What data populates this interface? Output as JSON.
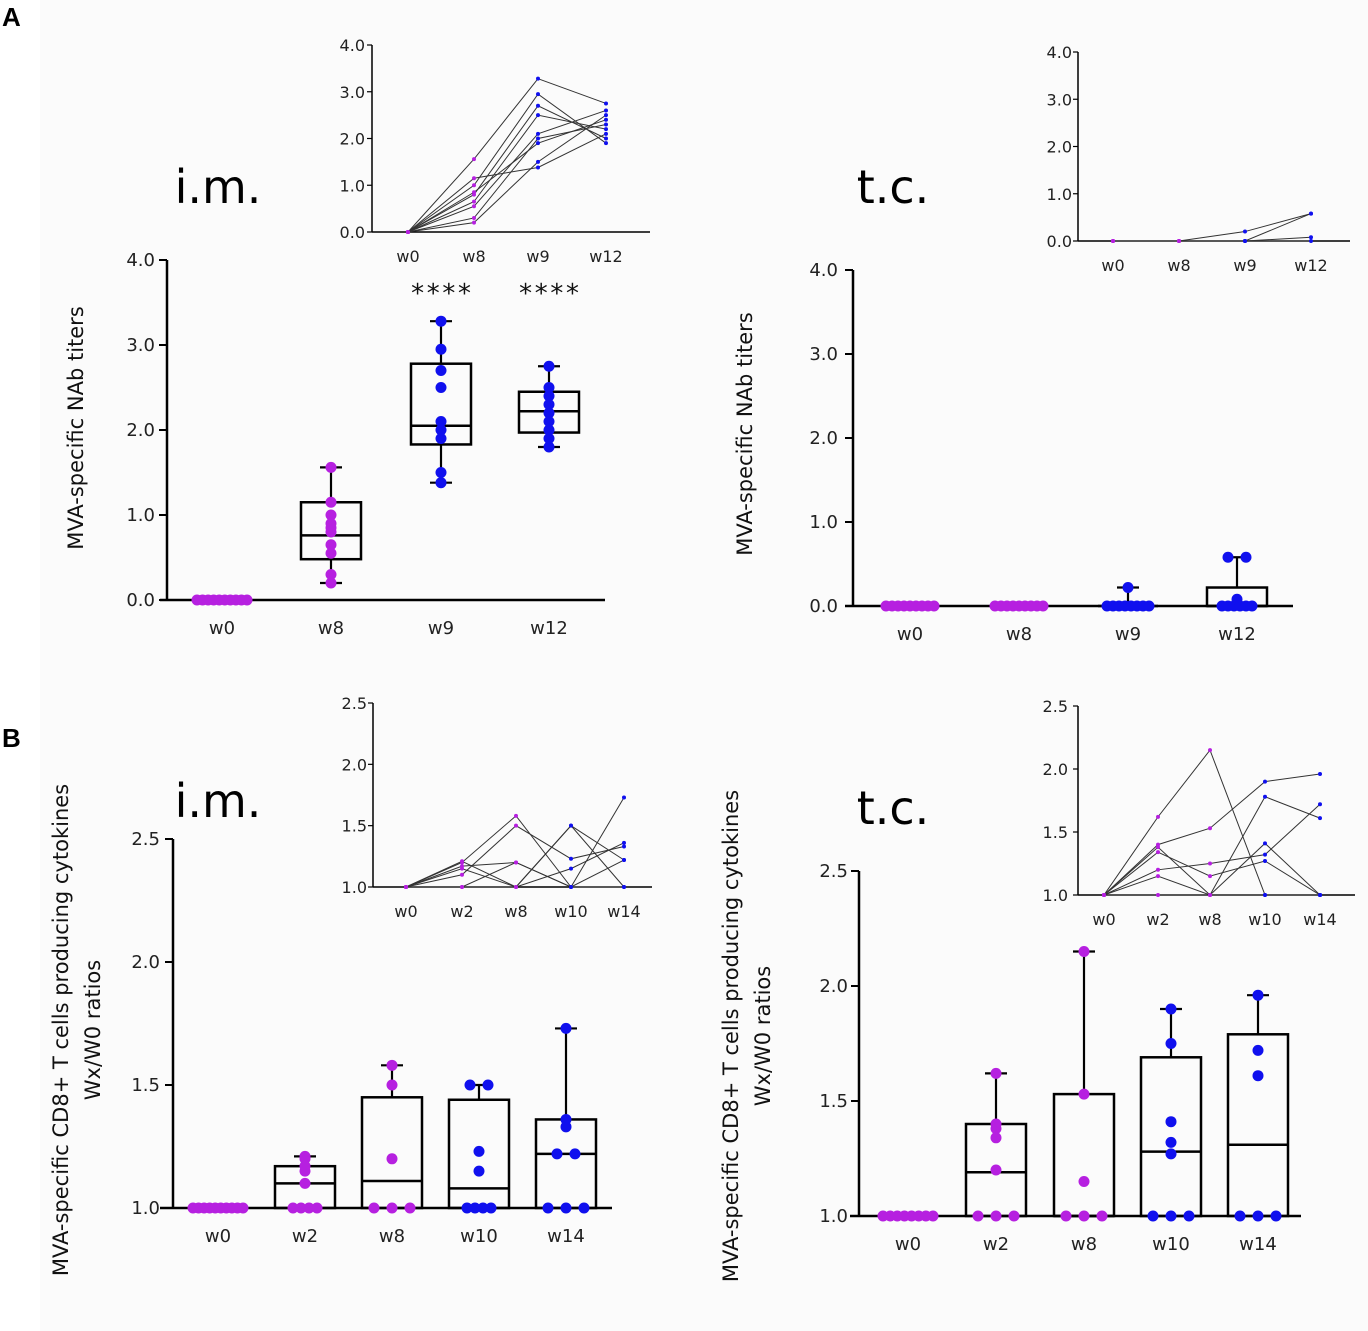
{
  "panel_labels": [
    "A",
    "B"
  ],
  "chart_data": [
    {
      "id": "A-im-main",
      "type": "box",
      "route_label": "i.m.",
      "ylabel": "MVA-specific NAb titers",
      "categories": [
        "w0",
        "w8",
        "w9",
        "w12"
      ],
      "yticks": [
        "0.0",
        "1.0",
        "2.0",
        "3.0",
        "4.0"
      ],
      "ylim": [
        0,
        4
      ],
      "significance": [
        "",
        "",
        "****",
        "****"
      ],
      "colors": [
        "#b620e0",
        "#b620e0",
        "#1010ee",
        "#1010ee"
      ],
      "boxes": [
        {
          "min": 0,
          "q1": 0,
          "median": 0,
          "q3": 0,
          "max": 0
        },
        {
          "min": 0.2,
          "q1": 0.48,
          "median": 0.76,
          "q3": 1.15,
          "max": 1.56
        },
        {
          "min": 1.38,
          "q1": 1.83,
          "median": 2.05,
          "q3": 2.78,
          "max": 3.28
        },
        {
          "min": 1.8,
          "q1": 1.97,
          "median": 2.22,
          "q3": 2.45,
          "max": 2.75
        }
      ],
      "points": [
        [
          0,
          0,
          0,
          0,
          0,
          0,
          0,
          0,
          0,
          0
        ],
        [
          0.2,
          0.3,
          0.55,
          0.65,
          0.8,
          0.85,
          0.9,
          1.0,
          1.15,
          1.56
        ],
        [
          1.38,
          1.5,
          1.9,
          2.0,
          2.1,
          2.5,
          2.7,
          2.95,
          3.28
        ],
        [
          1.8,
          1.9,
          2.0,
          2.1,
          2.2,
          2.3,
          2.4,
          2.5,
          2.75
        ]
      ]
    },
    {
      "id": "A-im-inset",
      "type": "line",
      "x": [
        "w0",
        "w8",
        "w9",
        "w12"
      ],
      "yticks": [
        "0.0",
        "1.0",
        "2.0",
        "3.0",
        "4.0"
      ],
      "ylim": [
        0,
        4
      ],
      "series": [
        [
          0,
          0.2,
          1.5,
          2.5
        ],
        [
          0,
          0.3,
          2.0,
          2.3
        ],
        [
          0,
          0.55,
          2.1,
          2.6
        ],
        [
          0,
          0.65,
          2.5,
          2.2
        ],
        [
          0,
          0.8,
          2.7,
          2.0
        ],
        [
          0,
          0.85,
          1.9,
          2.4
        ],
        [
          0,
          1.0,
          2.95,
          1.9
        ],
        [
          0,
          1.15,
          1.38,
          2.1
        ],
        [
          0,
          1.56,
          3.28,
          2.75
        ]
      ]
    },
    {
      "id": "A-tc-main",
      "type": "box",
      "route_label": "t.c.",
      "ylabel": "MVA-specific NAb titers",
      "categories": [
        "w0",
        "w8",
        "w9",
        "w12"
      ],
      "yticks": [
        "0.0",
        "1.0",
        "2.0",
        "3.0",
        "4.0"
      ],
      "ylim": [
        0,
        4
      ],
      "colors": [
        "#b620e0",
        "#b620e0",
        "#1010ee",
        "#1010ee"
      ],
      "boxes": [
        {
          "min": 0,
          "q1": 0,
          "median": 0,
          "q3": 0,
          "max": 0
        },
        {
          "min": 0,
          "q1": 0,
          "median": 0,
          "q3": 0,
          "max": 0
        },
        {
          "min": 0,
          "q1": 0,
          "median": 0,
          "q3": 0,
          "max": 0.22
        },
        {
          "min": 0,
          "q1": 0,
          "median": 0,
          "q3": 0.22,
          "max": 0.58
        }
      ],
      "points": [
        [
          0,
          0,
          0,
          0,
          0,
          0,
          0,
          0,
          0
        ],
        [
          0,
          0,
          0,
          0,
          0,
          0,
          0,
          0,
          0
        ],
        [
          0,
          0,
          0,
          0,
          0,
          0,
          0,
          0,
          0.22
        ],
        [
          0,
          0,
          0,
          0,
          0,
          0,
          0.08,
          0.58,
          0.58
        ]
      ]
    },
    {
      "id": "A-tc-inset",
      "type": "line",
      "x": [
        "w0",
        "w8",
        "w9",
        "w12"
      ],
      "yticks": [
        "0.0",
        "1.0",
        "2.0",
        "3.0",
        "4.0"
      ],
      "ylim": [
        0,
        4
      ],
      "series": [
        [
          0,
          0,
          0.2,
          0.58
        ],
        [
          0,
          0,
          0,
          0.58
        ],
        [
          0,
          0,
          0,
          0.08
        ],
        [
          0,
          0,
          0,
          0
        ]
      ]
    },
    {
      "id": "B-im-main",
      "type": "box",
      "route_label": "i.m.",
      "ylabel": "MVA-specific CD8+ T cells  producing cytokines",
      "ylabel2": "Wx/W0 ratios",
      "categories": [
        "w0",
        "w2",
        "w8",
        "w10",
        "w14"
      ],
      "yticks": [
        "1.0",
        "1.5",
        "2.0",
        "2.5"
      ],
      "ylim": [
        1,
        2.5
      ],
      "colors": [
        "#b620e0",
        "#b620e0",
        "#b620e0",
        "#1010ee",
        "#1010ee"
      ],
      "boxes": [
        {
          "min": 1,
          "q1": 1,
          "median": 1,
          "q3": 1,
          "max": 1
        },
        {
          "min": 1,
          "q1": 1,
          "median": 1.1,
          "q3": 1.17,
          "max": 1.21
        },
        {
          "min": 1,
          "q1": 1,
          "median": 1.11,
          "q3": 1.45,
          "max": 1.58
        },
        {
          "min": 1,
          "q1": 1,
          "median": 1.08,
          "q3": 1.44,
          "max": 1.5
        },
        {
          "min": 1,
          "q1": 1,
          "median": 1.22,
          "q3": 1.36,
          "max": 1.73
        }
      ],
      "points": [
        [
          1,
          1,
          1,
          1,
          1,
          1,
          1,
          1,
          1,
          1
        ],
        [
          1,
          1,
          1,
          1,
          1.1,
          1.15,
          1.17,
          1.2,
          1.21
        ],
        [
          1,
          1,
          1,
          1.2,
          1.5,
          1.58
        ],
        [
          1,
          1,
          1,
          1,
          1.15,
          1.23,
          1.5,
          1.5
        ],
        [
          1,
          1,
          1,
          1.22,
          1.22,
          1.33,
          1.36,
          1.73
        ]
      ]
    },
    {
      "id": "B-im-inset",
      "type": "line",
      "x": [
        "w0",
        "w2",
        "w8",
        "w10",
        "w14"
      ],
      "yticks": [
        "1.0",
        "1.5",
        "2.0",
        "2.5"
      ],
      "ylim": [
        1,
        2.5
      ],
      "series": [
        [
          1,
          1.2,
          1.58,
          1.0,
          1.22
        ],
        [
          1,
          1.21,
          1.0,
          1.5,
          1.0
        ],
        [
          1,
          1.17,
          1.2,
          1.0,
          1.73
        ],
        [
          1,
          1.1,
          1.5,
          1.23,
          1.33
        ],
        [
          1,
          1.0,
          1.0,
          1.15,
          1.36
        ],
        [
          1,
          1.15,
          1.0,
          1.5,
          1.22
        ],
        [
          1,
          1.0,
          1.2,
          1.0,
          1.0
        ]
      ]
    },
    {
      "id": "B-tc-main",
      "type": "box",
      "route_label": "t.c.",
      "ylabel": "MVA-specific CD8+ T cells  producing cytokines",
      "ylabel2": "Wx/W0 ratios",
      "categories": [
        "w0",
        "w2",
        "w8",
        "w10",
        "w14"
      ],
      "yticks": [
        "1.0",
        "1.5",
        "2.0",
        "2.5"
      ],
      "ylim": [
        1,
        2.5
      ],
      "colors": [
        "#b620e0",
        "#b620e0",
        "#b620e0",
        "#1010ee",
        "#1010ee"
      ],
      "boxes": [
        {
          "min": 1,
          "q1": 1,
          "median": 1,
          "q3": 1,
          "max": 1
        },
        {
          "min": 1,
          "q1": 1,
          "median": 1.19,
          "q3": 1.4,
          "max": 1.62
        },
        {
          "min": 1,
          "q1": 1,
          "median": 1,
          "q3": 1.53,
          "max": 2.15
        },
        {
          "min": 1,
          "q1": 1,
          "median": 1.28,
          "q3": 1.69,
          "max": 1.9
        },
        {
          "min": 1,
          "q1": 1,
          "median": 1.31,
          "q3": 1.79,
          "max": 1.96
        }
      ],
      "points": [
        [
          1,
          1,
          1,
          1,
          1,
          1,
          1,
          1
        ],
        [
          1,
          1,
          1,
          1.2,
          1.34,
          1.38,
          1.4,
          1.62
        ],
        [
          1,
          1,
          1,
          1.15,
          1.53,
          2.15
        ],
        [
          1,
          1,
          1,
          1.27,
          1.32,
          1.41,
          1.75,
          1.9
        ],
        [
          1,
          1,
          1,
          1.61,
          1.72,
          1.96
        ]
      ]
    },
    {
      "id": "B-tc-inset",
      "type": "line",
      "x": [
        "w0",
        "w2",
        "w8",
        "w10",
        "w14"
      ],
      "yticks": [
        "1.0",
        "1.5",
        "2.0",
        "2.5"
      ],
      "ylim": [
        1,
        2.5
      ],
      "series": [
        [
          1,
          1.62,
          2.15,
          1.0,
          1.0
        ],
        [
          1,
          1.4,
          1.53,
          1.9,
          1.96
        ],
        [
          1,
          1.38,
          1.0,
          1.78,
          1.61
        ],
        [
          1,
          1.2,
          1.25,
          1.32,
          1.72
        ],
        [
          1,
          1.34,
          1.15,
          1.27,
          1.0
        ],
        [
          1,
          1.0,
          1.0,
          1.41,
          1.0
        ],
        [
          1,
          1.15,
          1.0,
          1.0,
          1.0
        ]
      ]
    }
  ]
}
